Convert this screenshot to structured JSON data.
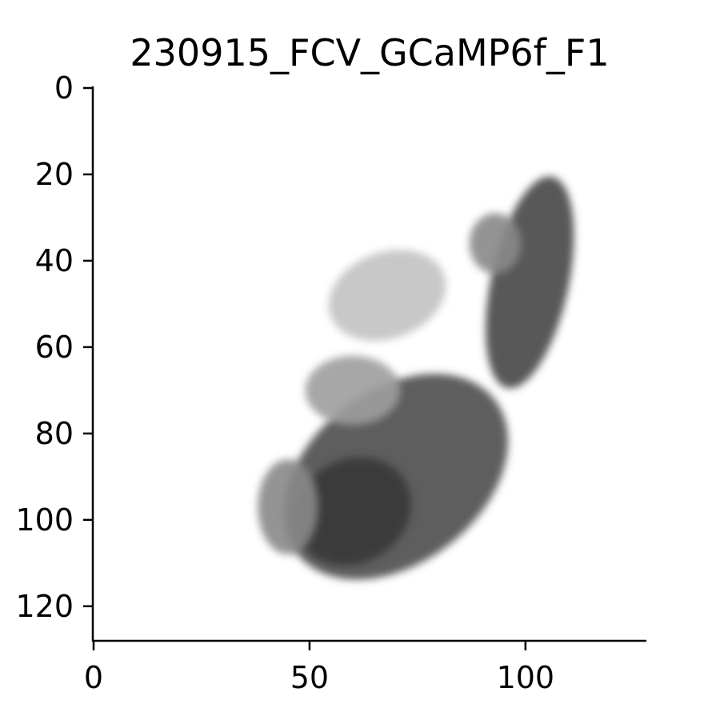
{
  "chart_data": {
    "type": "heatmap",
    "title": "230915_FCV_GCaMP6f_F1",
    "xlabel": "",
    "ylabel": "",
    "xlim": [
      0,
      128
    ],
    "ylim": [
      128,
      0
    ],
    "x_ticks": [
      0,
      50,
      100
    ],
    "y_ticks": [
      0,
      20,
      40,
      60,
      80,
      100,
      120
    ],
    "x_tick_labels": [
      "0",
      "50",
      "100"
    ],
    "y_tick_labels": [
      "0",
      "20",
      "40",
      "60",
      "80",
      "100",
      "120"
    ],
    "colormap": "grayscale",
    "regions": [
      {
        "name": "upper-right lobe",
        "cx": 101,
        "cy": 45,
        "rx": 9,
        "ry": 25,
        "angle": 12,
        "intensity": 0.85
      },
      {
        "name": "upper-right lobe edge",
        "cx": 93,
        "cy": 36,
        "rx": 6,
        "ry": 7,
        "angle": 0,
        "intensity": 0.55
      },
      {
        "name": "lower body",
        "cx": 70,
        "cy": 90,
        "rx": 29,
        "ry": 20,
        "angle": -38,
        "intensity": 0.82
      },
      {
        "name": "lower body core",
        "cx": 60,
        "cy": 98,
        "rx": 14,
        "ry": 12,
        "angle": -30,
        "intensity": 0.92
      },
      {
        "name": "lower body rim",
        "cx": 45,
        "cy": 97,
        "rx": 7,
        "ry": 11,
        "angle": 0,
        "intensity": 0.55
      },
      {
        "name": "center mid region",
        "cx": 60,
        "cy": 70,
        "rx": 11,
        "ry": 8,
        "angle": 0,
        "intensity": 0.45
      },
      {
        "name": "faint upper fragments",
        "cx": 68,
        "cy": 48,
        "rx": 14,
        "ry": 10,
        "angle": -20,
        "intensity": 0.28
      }
    ],
    "colors": {
      "axis": "#000000",
      "background": "#ffffff"
    }
  }
}
